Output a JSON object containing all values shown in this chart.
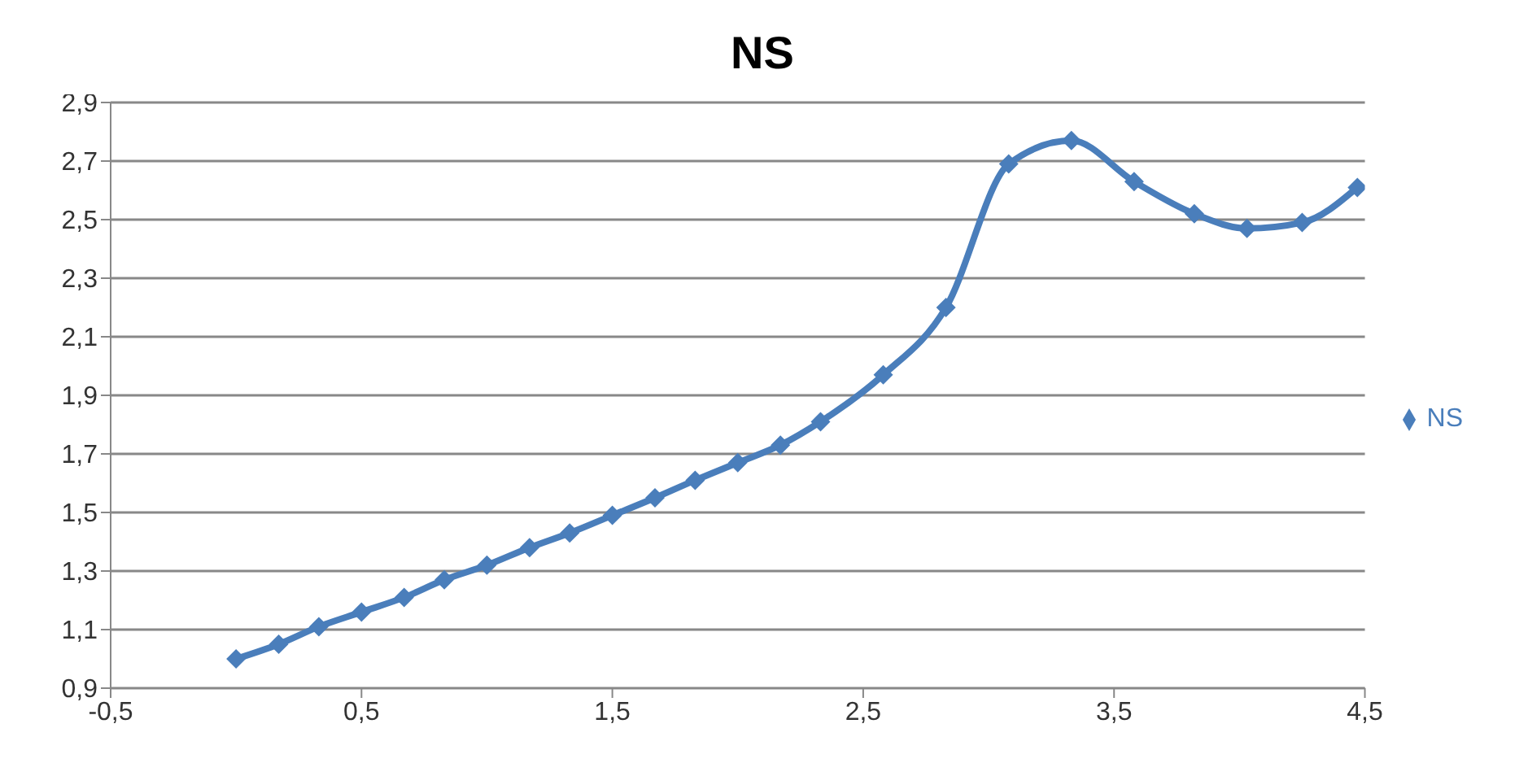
{
  "chart_data": {
    "type": "line",
    "title": "NS",
    "x": [
      0,
      0.17,
      0.33,
      0.5,
      0.67,
      0.83,
      1.0,
      1.17,
      1.33,
      1.5,
      1.67,
      1.83,
      2.0,
      2.17,
      2.33,
      2.58,
      2.83,
      3.08,
      3.33,
      3.58,
      3.82,
      4.03,
      4.25,
      4.47
    ],
    "series": [
      {
        "name": "NS",
        "color": "#4a7ebb",
        "values": [
          1.0,
          1.05,
          1.11,
          1.16,
          1.21,
          1.27,
          1.32,
          1.38,
          1.43,
          1.49,
          1.55,
          1.61,
          1.67,
          1.73,
          1.81,
          1.97,
          2.2,
          2.69,
          2.77,
          2.63,
          2.52,
          2.47,
          2.49,
          2.61
        ]
      }
    ],
    "xlim": [
      -0.5,
      4.5
    ],
    "xticks": [
      {
        "value": -0.5,
        "label": "-0,5"
      },
      {
        "value": 0.5,
        "label": "0,5"
      },
      {
        "value": 1.5,
        "label": "1,5"
      },
      {
        "value": 2.5,
        "label": "2,5"
      },
      {
        "value": 3.5,
        "label": "3,5"
      },
      {
        "value": 4.5,
        "label": "4,5"
      }
    ],
    "ylim": [
      0.9,
      2.9
    ],
    "yticks": [
      {
        "value": 0.9,
        "label": "0,9"
      },
      {
        "value": 1.1,
        "label": "1,1"
      },
      {
        "value": 1.3,
        "label": "1,3"
      },
      {
        "value": 1.5,
        "label": "1,5"
      },
      {
        "value": 1.7,
        "label": "1,7"
      },
      {
        "value": 1.9,
        "label": "1,9"
      },
      {
        "value": 2.1,
        "label": "2,1"
      },
      {
        "value": 2.3,
        "label": "2,3"
      },
      {
        "value": 2.5,
        "label": "2,5"
      },
      {
        "value": 2.7,
        "label": "2,7"
      },
      {
        "value": 2.9,
        "label": "2,9"
      }
    ],
    "grid": "y",
    "legend": "right",
    "marker": "diamond",
    "line_style": "solid"
  }
}
